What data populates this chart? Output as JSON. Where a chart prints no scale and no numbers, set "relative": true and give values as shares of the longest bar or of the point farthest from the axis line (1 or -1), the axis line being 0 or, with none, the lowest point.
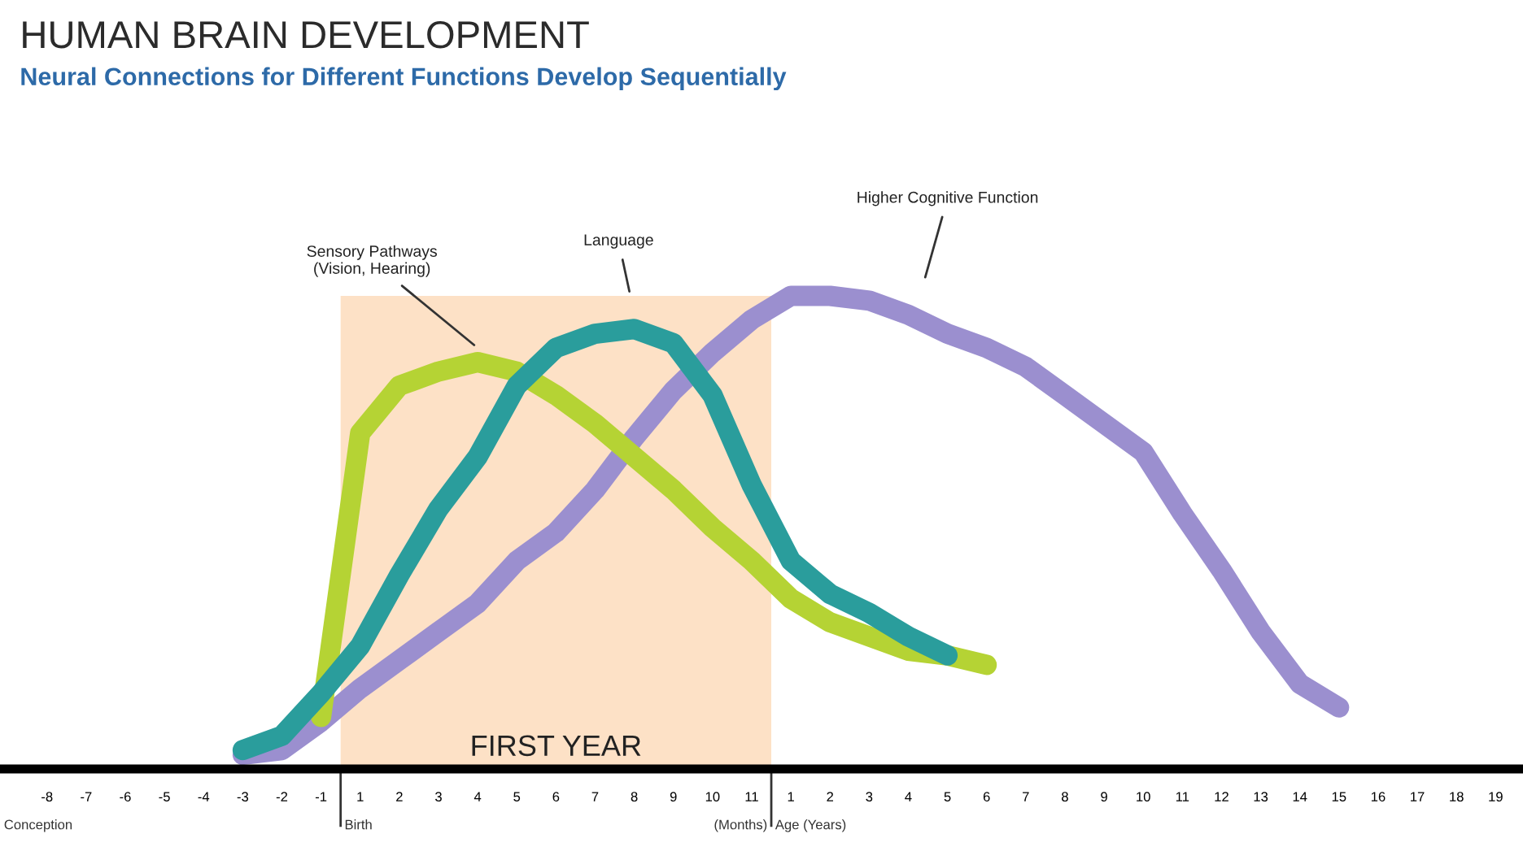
{
  "chart_data": {
    "type": "line",
    "title": "HUMAN BRAIN DEVELOPMENT",
    "subtitle": "Neural Connections for Different Functions Develop Sequentially",
    "relative": true,
    "line_style": "solid",
    "grid": false,
    "legend": false,
    "categories": [
      "-8",
      "-7",
      "-6",
      "-5",
      "-4",
      "-3",
      "-2",
      "-1",
      "1",
      "2",
      "3",
      "4",
      "5",
      "6",
      "7",
      "8",
      "9",
      "10",
      "11",
      "1",
      "2",
      "3",
      "4",
      "5",
      "6",
      "7",
      "8",
      "9",
      "10",
      "11",
      "12",
      "13",
      "14",
      "15",
      "16",
      "17",
      "18",
      "19"
    ],
    "series": [
      {
        "color": "#9b8fcf",
        "values": [
          null,
          null,
          null,
          null,
          null,
          0.03,
          0.04,
          0.1,
          0.17,
          0.23,
          0.29,
          0.35,
          0.44,
          0.5,
          0.59,
          0.7,
          0.8,
          0.88,
          0.95,
          1.0,
          1.0,
          0.99,
          0.96,
          0.92,
          0.89,
          0.85,
          0.79,
          0.73,
          0.67,
          0.54,
          0.42,
          0.29,
          0.18,
          0.13,
          null,
          null,
          null,
          null
        ]
      },
      {
        "color": "#b5d334",
        "values": [
          null,
          null,
          null,
          null,
          null,
          null,
          null,
          0.11,
          0.71,
          0.81,
          0.84,
          0.86,
          0.84,
          0.79,
          0.73,
          0.66,
          0.59,
          0.51,
          0.44,
          0.36,
          0.31,
          0.28,
          0.25,
          0.24,
          0.22,
          null,
          null,
          null,
          null,
          null,
          null,
          null,
          null,
          null,
          null,
          null,
          null,
          null
        ]
      },
      {
        "color": "#2a9d9c",
        "values": [
          null,
          null,
          null,
          null,
          null,
          0.04,
          0.07,
          0.16,
          0.26,
          0.41,
          0.55,
          0.66,
          0.81,
          0.89,
          0.92,
          0.93,
          0.9,
          0.79,
          0.6,
          0.44,
          0.37,
          0.33,
          0.28,
          0.24,
          null,
          null,
          null,
          null,
          null,
          null,
          null,
          null,
          null,
          null,
          null,
          null,
          null,
          null
        ]
      }
    ],
    "bands": [
      {
        "axis": "x",
        "from": "1",
        "to": "11",
        "label": "FIRST YEAR",
        "color": "#fde1c6"
      }
    ],
    "annotations": [
      "Sensory Pathways\n(Vision, Hearing)",
      "Language",
      "Higher Cognitive Function",
      "Conception",
      "Birth",
      "(Months)",
      "Age (Years)"
    ]
  }
}
